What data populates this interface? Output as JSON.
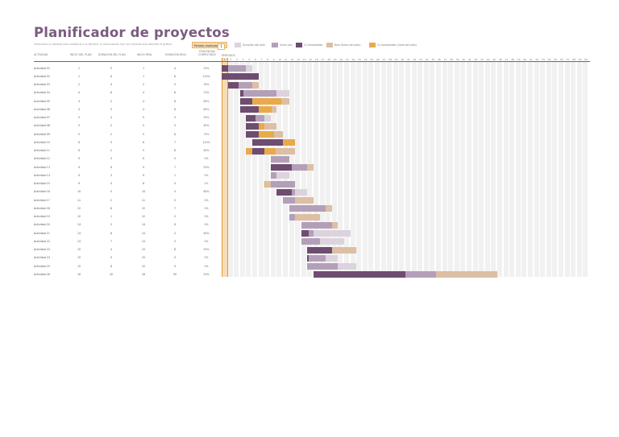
{
  "header": {
    "title": "Planificador de proyectos",
    "subtitle": "Seleccione un período para resaltarlo a la derecha. A continuación hay una leyenda que describe el gráfico."
  },
  "period_selector": {
    "label": "Período resaltado",
    "value": "1"
  },
  "legend": [
    {
      "label": "Duración del plan",
      "color": "#dcd3de"
    },
    {
      "label": "Inicio real",
      "color": "#b49fb9"
    },
    {
      "label": "% Completado",
      "color": "#6e4d70"
    },
    {
      "label": "Real (fuera del plan)",
      "color": "#dcbfa4"
    },
    {
      "label": "% Completado (fuera del plan)",
      "color": "#e8aa4a"
    }
  ],
  "columns": {
    "activity": "ACTIVIDAD",
    "plan_start": "INICIO DEL PLAN",
    "plan_duration": "DURACIÓN DEL PLAN",
    "real_start": "INICIO REAL",
    "real_duration": "DURACIÓN REAL",
    "percent_line1": "PORCENTAJE",
    "percent_line2": "COMPLETADO",
    "periods": "PERÍODOS"
  },
  "periods": {
    "count": 60,
    "highlighted": 1
  },
  "colors": {
    "accent": "#7b5c80",
    "plan": "#dcd3de",
    "real": "#b49fb9",
    "complete": "#6e4d70",
    "real_out": "#dcbfa4",
    "complete_out": "#e8aa4a",
    "highlight": "#f6dcb6"
  },
  "activities": [
    {
      "name": "Actividad 01",
      "plan_start": 1,
      "plan_duration": 5,
      "real_start": 1,
      "real_duration": 4,
      "percent": "25%"
    },
    {
      "name": "Actividad 02",
      "plan_start": 1,
      "plan_duration": 6,
      "real_start": 1,
      "real_duration": 6,
      "percent": "100%"
    },
    {
      "name": "Actividad 03",
      "plan_start": 2,
      "plan_duration": 4,
      "real_start": 2,
      "real_duration": 5,
      "percent": "35%"
    },
    {
      "name": "Actividad 04",
      "plan_start": 4,
      "plan_duration": 8,
      "real_start": 4,
      "real_duration": 6,
      "percent": "10%"
    },
    {
      "name": "Actividad 05",
      "plan_start": 4,
      "plan_duration": 2,
      "real_start": 4,
      "real_duration": 8,
      "percent": "85%"
    },
    {
      "name": "Actividad 06",
      "plan_start": 4,
      "plan_duration": 3,
      "real_start": 4,
      "real_duration": 6,
      "percent": "85%"
    },
    {
      "name": "Actividad 07",
      "plan_start": 5,
      "plan_duration": 4,
      "real_start": 5,
      "real_duration": 3,
      "percent": "50%"
    },
    {
      "name": "Actividad 08",
      "plan_start": 5,
      "plan_duration": 2,
      "real_start": 5,
      "real_duration": 5,
      "percent": "60%"
    },
    {
      "name": "Actividad 09",
      "plan_start": 5,
      "plan_duration": 2,
      "real_start": 5,
      "real_duration": 6,
      "percent": "75%"
    },
    {
      "name": "Actividad 10",
      "plan_start": 6,
      "plan_duration": 5,
      "real_start": 6,
      "real_duration": 7,
      "percent": "100%"
    },
    {
      "name": "Actividad 11",
      "plan_start": 6,
      "plan_duration": 2,
      "real_start": 5,
      "real_duration": 8,
      "percent": "60%"
    },
    {
      "name": "Actividad 12",
      "plan_start": 9,
      "plan_duration": 3,
      "real_start": 9,
      "real_duration": 3,
      "percent": "0%"
    },
    {
      "name": "Actividad 13",
      "plan_start": 9,
      "plan_duration": 6,
      "real_start": 9,
      "real_duration": 7,
      "percent": "50%"
    },
    {
      "name": "Actividad 14",
      "plan_start": 9,
      "plan_duration": 3,
      "real_start": 9,
      "real_duration": 1,
      "percent": "0%"
    },
    {
      "name": "Actividad 15",
      "plan_start": 9,
      "plan_duration": 4,
      "real_start": 8,
      "real_duration": 5,
      "percent": "1%"
    },
    {
      "name": "Actividad 16",
      "plan_start": 10,
      "plan_duration": 5,
      "real_start": 10,
      "real_duration": 3,
      "percent": "80%"
    },
    {
      "name": "Actividad 17",
      "plan_start": 11,
      "plan_duration": 2,
      "real_start": 11,
      "real_duration": 5,
      "percent": "0%"
    },
    {
      "name": "Actividad 18",
      "plan_start": 12,
      "plan_duration": 6,
      "real_start": 12,
      "real_duration": 7,
      "percent": "0%"
    },
    {
      "name": "Actividad 19",
      "plan_start": 12,
      "plan_duration": 1,
      "real_start": 12,
      "real_duration": 5,
      "percent": "0%"
    },
    {
      "name": "Actividad 20",
      "plan_start": 14,
      "plan_duration": 5,
      "real_start": 14,
      "real_duration": 6,
      "percent": "0%"
    },
    {
      "name": "Actividad 21",
      "plan_start": 14,
      "plan_duration": 8,
      "real_start": 14,
      "real_duration": 2,
      "percent": "60%"
    },
    {
      "name": "Actividad 22",
      "plan_start": 14,
      "plan_duration": 7,
      "real_start": 14,
      "real_duration": 3,
      "percent": "0%"
    },
    {
      "name": "Actividad 23",
      "plan_start": 15,
      "plan_duration": 4,
      "real_start": 15,
      "real_duration": 8,
      "percent": "50%"
    },
    {
      "name": "Actividad 24",
      "plan_start": 15,
      "plan_duration": 5,
      "real_start": 15,
      "real_duration": 3,
      "percent": "5%"
    },
    {
      "name": "Actividad 25",
      "plan_start": 15,
      "plan_duration": 8,
      "real_start": 15,
      "real_duration": 5,
      "percent": "0%"
    },
    {
      "name": "Actividad 26",
      "plan_start": 16,
      "plan_duration": 20,
      "real_start": 16,
      "real_duration": 30,
      "percent": "50%"
    }
  ]
}
